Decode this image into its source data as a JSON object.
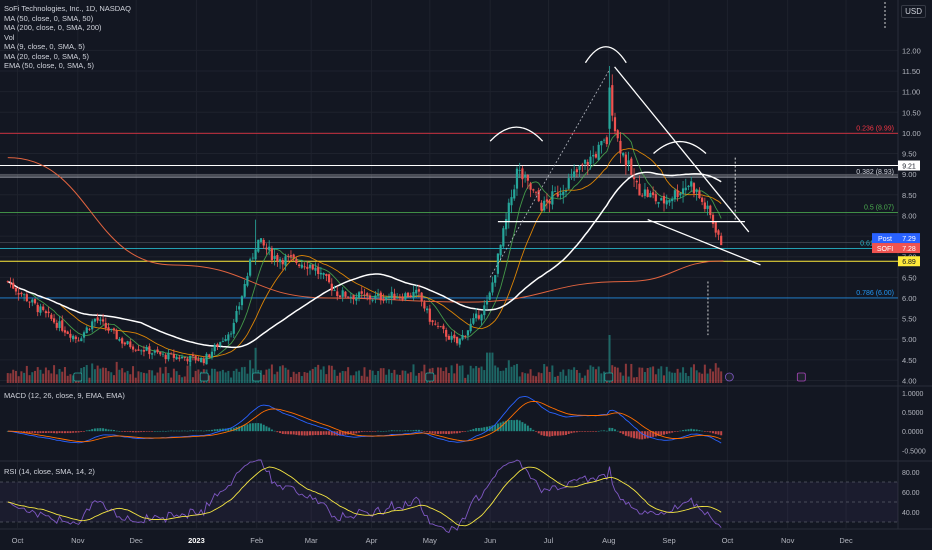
{
  "symbol_title": "SoFi Technologies, Inc., 1D, NASDAQ",
  "currency": "USD",
  "indicators": [
    "MA (50, close, 0, SMA, 50)",
    "MA (200, close, 0, SMA, 200)",
    "Vol",
    "MA (9, close, 0, SMA, 5)",
    "MA (20, close, 0, SMA, 5)",
    "EMA (50, close, 0, SMA, 5)"
  ],
  "macd_legend": "MACD (12, 26, close, 9, EMA, EMA)",
  "rsi_legend": "RSI (14, close, SMA, 14, 2)",
  "colors": {
    "background": "#131722",
    "grid": "#1e222d",
    "up": "#26a69a",
    "down": "#ef5350",
    "ma_white": "#ffffff",
    "ma200": "#e0633f",
    "ma20": "#ff9800",
    "ma9": "#4caf50",
    "macd": "#2962ff",
    "signal": "#ff6d00",
    "rsi": "#7e57c2",
    "rsi_ma": "#f5e642",
    "fib_red": "#f23645",
    "fib_green": "#4caf50",
    "fib_blue": "#2196f3",
    "support_yellow": "#ffeb3b"
  },
  "chart_data": {
    "type": "candlestick",
    "x_axis_labels": [
      "Oct",
      "Nov",
      "Dec",
      "2023",
      "Feb",
      "Mar",
      "Apr",
      "May",
      "Jun",
      "Jul",
      "Aug",
      "Sep",
      "Oct",
      "Nov",
      "Dec"
    ],
    "y_axis": {
      "ticks": [
        "12.00",
        "11.50",
        "11.00",
        "10.50",
        "10.00",
        "9.50",
        "9.00",
        "8.50",
        "8.00",
        "7.50",
        "7.00",
        "6.50",
        "6.00",
        "5.50",
        "5.00",
        "4.50",
        "4.00"
      ],
      "range": [
        3.6,
        12.3
      ]
    },
    "close_series_approx": [
      {
        "x": "2022-09-26",
        "y": 6.4
      },
      {
        "x": "2022-10-15",
        "y": 5.6
      },
      {
        "x": "2022-11-01",
        "y": 5.0
      },
      {
        "x": "2022-11-10",
        "y": 5.5
      },
      {
        "x": "2022-11-25",
        "y": 4.9
      },
      {
        "x": "2022-12-15",
        "y": 4.6
      },
      {
        "x": "2023-01-05",
        "y": 4.5
      },
      {
        "x": "2023-01-20",
        "y": 5.3
      },
      {
        "x": "2023-02-01",
        "y": 7.4
      },
      {
        "x": "2023-02-10",
        "y": 7.0
      },
      {
        "x": "2023-03-01",
        "y": 6.8
      },
      {
        "x": "2023-03-15",
        "y": 6.1
      },
      {
        "x": "2023-04-01",
        "y": 6.0
      },
      {
        "x": "2023-04-25",
        "y": 6.1
      },
      {
        "x": "2023-05-02",
        "y": 5.4
      },
      {
        "x": "2023-05-15",
        "y": 4.9
      },
      {
        "x": "2023-05-31",
        "y": 5.9
      },
      {
        "x": "2023-06-08",
        "y": 7.6
      },
      {
        "x": "2023-06-15",
        "y": 9.1
      },
      {
        "x": "2023-06-28",
        "y": 8.2
      },
      {
        "x": "2023-07-15",
        "y": 9.0
      },
      {
        "x": "2023-07-31",
        "y": 9.8
      },
      {
        "x": "2023-08-01",
        "y": 11.2
      },
      {
        "x": "2023-08-05",
        "y": 9.9
      },
      {
        "x": "2023-08-15",
        "y": 8.7
      },
      {
        "x": "2023-08-28",
        "y": 8.3
      },
      {
        "x": "2023-09-12",
        "y": 8.8
      },
      {
        "x": "2023-09-22",
        "y": 8.0
      },
      {
        "x": "2023-09-29",
        "y": 7.28
      }
    ],
    "moving_averages": [
      {
        "name": "MA (50, close, 0, SMA, 50)",
        "values": [
          {
            "x": "2022-09-26",
            "y": 6.6
          },
          {
            "x": "2022-12-20",
            "y": 4.6
          },
          {
            "x": "2023-03-10",
            "y": 6.5
          },
          {
            "x": "2023-05-20",
            "y": 5.3
          },
          {
            "x": "2023-06-20",
            "y": 7.0
          },
          {
            "x": "2023-08-10",
            "y": 8.7
          },
          {
            "x": "2023-09-29",
            "y": 8.3
          }
        ]
      },
      {
        "name": "MA (200, close, 0, SMA, 200)",
        "values": [
          {
            "x": "2022-09-26",
            "y": 9.4
          },
          {
            "x": "2022-12-20",
            "y": 6.8
          },
          {
            "x": "2023-03-10",
            "y": 6.0
          },
          {
            "x": "2023-05-20",
            "y": 5.9
          },
          {
            "x": "2023-08-10",
            "y": 6.4
          },
          {
            "x": "2023-09-29",
            "y": 6.9
          }
        ]
      }
    ],
    "price_labels": [
      {
        "text": "Post",
        "value": "7.29"
      },
      {
        "text": "SOFI",
        "value": "7.28"
      },
      {
        "text": "",
        "value": "9.21"
      },
      {
        "text": "",
        "value": "6.89"
      }
    ],
    "fibonacci": [
      {
        "label": "0.236 (9.99)",
        "value": 9.99
      },
      {
        "label": "0.382 (8.93)",
        "value": 8.93
      },
      {
        "label": "0.5 (8.07)",
        "value": 8.07
      },
      {
        "label": "0.618 (7.2)",
        "value": 7.2
      },
      {
        "label": "0.786 (6.00)",
        "value": 6.0
      }
    ],
    "macd": {
      "ticks": [
        "1.0000",
        "0.5000",
        "0.0000",
        "-0.5000"
      ],
      "range": [
        -0.75,
        1.15
      ]
    },
    "rsi": {
      "ticks": [
        "80.00",
        "60.00",
        "40.00"
      ],
      "range": [
        24,
        90
      ]
    }
  }
}
